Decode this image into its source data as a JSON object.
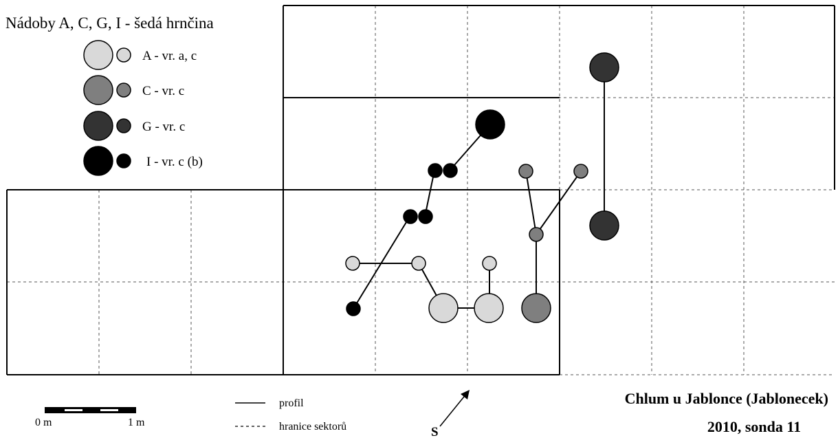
{
  "legend": {
    "title": "Nádoby A, C, G, I - šedá hrnčina",
    "items": [
      {
        "id": "A",
        "label": "A - vr. a, c",
        "color": "#d9d9d9"
      },
      {
        "id": "C",
        "label": "C - vr. c",
        "color": "#7f7f7f"
      },
      {
        "id": "G",
        "label": "G - vr. c",
        "color": "#333333"
      },
      {
        "id": "I",
        "label": "I - vr. c (b)",
        "color": "#000000"
      }
    ]
  },
  "scale": {
    "start_label": "0 m",
    "end_label": "1 m"
  },
  "line_legend": {
    "solid_label": "profil",
    "dashed_label": "hranice sektorů"
  },
  "north_arrow": {
    "label": "S"
  },
  "title": {
    "line1": "Chlum u Jablonce (Jablonecek)",
    "line2": "2010, sonda 11"
  },
  "vessel_colors": {
    "A": "#d9d9d9",
    "C": "#7f7f7f",
    "G": "#333333",
    "I": "#000000"
  }
}
